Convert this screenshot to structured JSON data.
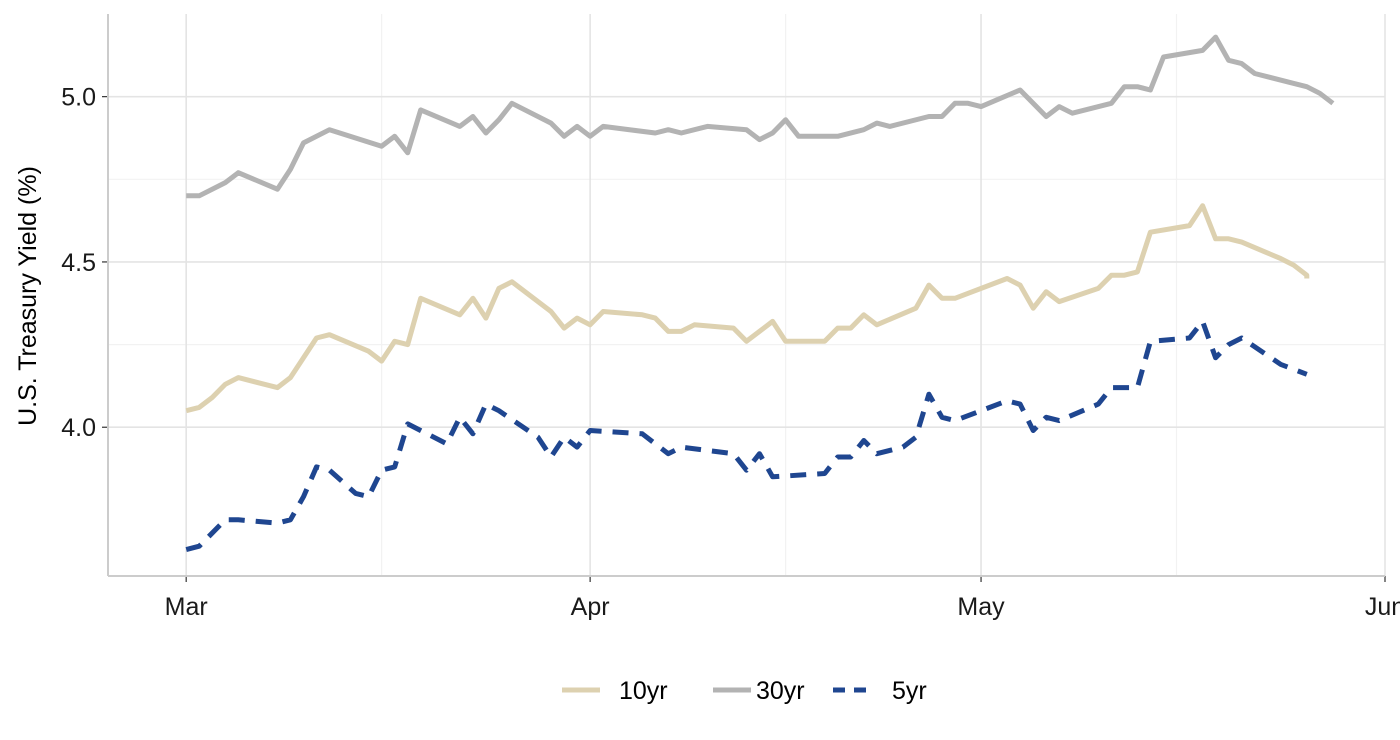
{
  "chart_data": {
    "type": "line",
    "title": "",
    "xlabel": "",
    "ylabel": "U.S. Treasury Yield (%)",
    "x_ticks": [
      {
        "date": "2024-03-01",
        "label": "Mar"
      },
      {
        "date": "2024-04-01",
        "label": "Apr"
      },
      {
        "date": "2024-05-01",
        "label": "May"
      },
      {
        "date": "2024-06-01",
        "label": "Jun"
      }
    ],
    "y_ticks": [
      {
        "value": 4.0,
        "label": "4.0"
      },
      {
        "value": 4.5,
        "label": "4.5"
      },
      {
        "value": 5.0,
        "label": "5.0"
      }
    ],
    "xlim": [
      "2024-02-24",
      "2024-06-01"
    ],
    "ylim": [
      3.55,
      5.25
    ],
    "grid": true,
    "legend_position": "bottom",
    "series": [
      {
        "name": "10yr",
        "color": "#DDD1B0",
        "dash": "solid",
        "points": [
          [
            "2024-03-01",
            4.05
          ],
          [
            "2024-03-02",
            4.06
          ],
          [
            "2024-03-03",
            4.09
          ],
          [
            "2024-03-04",
            4.13
          ],
          [
            "2024-03-05",
            4.15
          ],
          [
            "2024-03-08",
            4.12
          ],
          [
            "2024-03-09",
            4.15
          ],
          [
            "2024-03-11",
            4.27
          ],
          [
            "2024-03-12",
            4.28
          ],
          [
            "2024-03-15",
            4.23
          ],
          [
            "2024-03-16",
            4.2
          ],
          [
            "2024-03-17",
            4.26
          ],
          [
            "2024-03-18",
            4.25
          ],
          [
            "2024-03-19",
            4.39
          ],
          [
            "2024-03-22",
            4.34
          ],
          [
            "2024-03-23",
            4.39
          ],
          [
            "2024-03-24",
            4.33
          ],
          [
            "2024-03-25",
            4.42
          ],
          [
            "2024-03-26",
            4.44
          ],
          [
            "2024-03-29",
            4.35
          ],
          [
            "2024-03-30",
            4.3
          ],
          [
            "2024-03-31",
            4.33
          ],
          [
            "2024-04-01",
            4.31
          ],
          [
            "2024-04-02",
            4.35
          ],
          [
            "2024-04-05",
            4.34
          ],
          [
            "2024-04-06",
            4.33
          ],
          [
            "2024-04-07",
            4.29
          ],
          [
            "2024-04-08",
            4.29
          ],
          [
            "2024-04-09",
            4.31
          ],
          [
            "2024-04-12",
            4.3
          ],
          [
            "2024-04-13",
            4.26
          ],
          [
            "2024-04-14",
            4.29
          ],
          [
            "2024-04-15",
            4.32
          ],
          [
            "2024-04-16",
            4.26
          ],
          [
            "2024-04-19",
            4.26
          ],
          [
            "2024-04-20",
            4.3
          ],
          [
            "2024-04-21",
            4.3
          ],
          [
            "2024-04-22",
            4.34
          ],
          [
            "2024-04-23",
            4.31
          ],
          [
            "2024-04-26",
            4.36
          ],
          [
            "2024-04-27",
            4.43
          ],
          [
            "2024-04-28",
            4.39
          ],
          [
            "2024-04-29",
            4.39
          ],
          [
            "2024-05-03",
            4.45
          ],
          [
            "2024-05-04",
            4.43
          ],
          [
            "2024-05-05",
            4.36
          ],
          [
            "2024-05-06",
            4.41
          ],
          [
            "2024-05-07",
            4.38
          ],
          [
            "2024-05-10",
            4.42
          ],
          [
            "2024-05-11",
            4.46
          ],
          [
            "2024-05-12",
            4.46
          ],
          [
            "2024-05-13",
            4.47
          ],
          [
            "2024-05-14",
            4.59
          ],
          [
            "2024-05-17",
            4.61
          ],
          [
            "2024-05-18",
            4.67
          ],
          [
            "2024-05-19",
            4.57
          ],
          [
            "2024-05-20",
            4.57
          ],
          [
            "2024-05-21",
            4.56
          ],
          [
            "2024-05-24",
            4.51
          ],
          [
            "2024-05-25",
            4.49
          ],
          [
            "2024-05-26",
            4.46
          ],
          [
            "2024-05-26",
            4.45
          ]
        ]
      },
      {
        "name": "30yr",
        "color": "#B3B3B3",
        "dash": "solid",
        "points": [
          [
            "2024-03-01",
            4.7
          ],
          [
            "2024-03-02",
            4.7
          ],
          [
            "2024-03-04",
            4.74
          ],
          [
            "2024-03-05",
            4.77
          ],
          [
            "2024-03-08",
            4.72
          ],
          [
            "2024-03-09",
            4.78
          ],
          [
            "2024-03-10",
            4.86
          ],
          [
            "2024-03-12",
            4.9
          ],
          [
            "2024-03-16",
            4.85
          ],
          [
            "2024-03-17",
            4.88
          ],
          [
            "2024-03-18",
            4.83
          ],
          [
            "2024-03-19",
            4.96
          ],
          [
            "2024-03-22",
            4.91
          ],
          [
            "2024-03-23",
            4.94
          ],
          [
            "2024-03-24",
            4.89
          ],
          [
            "2024-03-25",
            4.93
          ],
          [
            "2024-03-26",
            4.98
          ],
          [
            "2024-03-29",
            4.92
          ],
          [
            "2024-03-30",
            4.88
          ],
          [
            "2024-03-31",
            4.91
          ],
          [
            "2024-04-01",
            4.88
          ],
          [
            "2024-04-02",
            4.91
          ],
          [
            "2024-04-06",
            4.89
          ],
          [
            "2024-04-07",
            4.9
          ],
          [
            "2024-04-08",
            4.89
          ],
          [
            "2024-04-10",
            4.91
          ],
          [
            "2024-04-13",
            4.9
          ],
          [
            "2024-04-14",
            4.87
          ],
          [
            "2024-04-15",
            4.89
          ],
          [
            "2024-04-16",
            4.93
          ],
          [
            "2024-04-17",
            4.88
          ],
          [
            "2024-04-20",
            4.88
          ],
          [
            "2024-04-22",
            4.9
          ],
          [
            "2024-04-23",
            4.92
          ],
          [
            "2024-04-24",
            4.91
          ],
          [
            "2024-04-27",
            4.94
          ],
          [
            "2024-04-28",
            4.94
          ],
          [
            "2024-04-29",
            4.98
          ],
          [
            "2024-04-30",
            4.98
          ],
          [
            "2024-05-01",
            4.97
          ],
          [
            "2024-05-04",
            5.02
          ],
          [
            "2024-05-06",
            4.94
          ],
          [
            "2024-05-07",
            4.97
          ],
          [
            "2024-05-08",
            4.95
          ],
          [
            "2024-05-11",
            4.98
          ],
          [
            "2024-05-12",
            5.03
          ],
          [
            "2024-05-13",
            5.03
          ],
          [
            "2024-05-14",
            5.02
          ],
          [
            "2024-05-15",
            5.12
          ],
          [
            "2024-05-18",
            5.14
          ],
          [
            "2024-05-19",
            5.18
          ],
          [
            "2024-05-20",
            5.11
          ],
          [
            "2024-05-21",
            5.1
          ],
          [
            "2024-05-22",
            5.07
          ],
          [
            "2024-05-25",
            5.04
          ],
          [
            "2024-05-26",
            5.03
          ],
          [
            "2024-05-27",
            5.01
          ],
          [
            "2024-05-28",
            4.98
          ]
        ]
      },
      {
        "name": "5yr",
        "color": "#1F4690",
        "dash": "dashed",
        "points": [
          [
            "2024-03-01",
            3.63
          ],
          [
            "2024-03-02",
            3.64
          ],
          [
            "2024-03-04",
            3.72
          ],
          [
            "2024-03-05",
            3.72
          ],
          [
            "2024-03-08",
            3.71
          ],
          [
            "2024-03-09",
            3.72
          ],
          [
            "2024-03-10",
            3.79
          ],
          [
            "2024-03-11",
            3.88
          ],
          [
            "2024-03-12",
            3.87
          ],
          [
            "2024-03-14",
            3.8
          ],
          [
            "2024-03-15",
            3.79
          ],
          [
            "2024-03-16",
            3.87
          ],
          [
            "2024-03-17",
            3.88
          ],
          [
            "2024-03-18",
            4.01
          ],
          [
            "2024-03-21",
            3.95
          ],
          [
            "2024-03-22",
            4.03
          ],
          [
            "2024-03-23",
            3.98
          ],
          [
            "2024-03-24",
            4.07
          ],
          [
            "2024-03-25",
            4.05
          ],
          [
            "2024-03-28",
            3.97
          ],
          [
            "2024-03-29",
            3.91
          ],
          [
            "2024-03-30",
            3.97
          ],
          [
            "2024-03-31",
            3.94
          ],
          [
            "2024-04-01",
            3.99
          ],
          [
            "2024-04-05",
            3.98
          ],
          [
            "2024-04-06",
            3.95
          ],
          [
            "2024-04-07",
            3.92
          ],
          [
            "2024-04-08",
            3.94
          ],
          [
            "2024-04-10",
            3.93
          ],
          [
            "2024-04-12",
            3.92
          ],
          [
            "2024-04-13",
            3.87
          ],
          [
            "2024-04-14",
            3.92
          ],
          [
            "2024-04-15",
            3.85
          ],
          [
            "2024-04-19",
            3.86
          ],
          [
            "2024-04-20",
            3.91
          ],
          [
            "2024-04-21",
            3.91
          ],
          [
            "2024-04-22",
            3.96
          ],
          [
            "2024-04-23",
            3.92
          ],
          [
            "2024-04-25",
            3.94
          ],
          [
            "2024-04-26",
            3.97
          ],
          [
            "2024-04-27",
            4.1
          ],
          [
            "2024-04-28",
            4.03
          ],
          [
            "2024-04-29",
            4.02
          ],
          [
            "2024-05-03",
            4.08
          ],
          [
            "2024-05-04",
            4.07
          ],
          [
            "2024-05-05",
            3.99
          ],
          [
            "2024-05-06",
            4.03
          ],
          [
            "2024-05-07",
            4.02
          ],
          [
            "2024-05-10",
            4.07
          ],
          [
            "2024-05-11",
            4.12
          ],
          [
            "2024-05-12",
            4.12
          ],
          [
            "2024-05-13",
            4.12
          ],
          [
            "2024-05-14",
            4.26
          ],
          [
            "2024-05-17",
            4.27
          ],
          [
            "2024-05-18",
            4.32
          ],
          [
            "2024-05-19",
            4.21
          ],
          [
            "2024-05-20",
            4.25
          ],
          [
            "2024-05-21",
            4.27
          ],
          [
            "2024-05-24",
            4.19
          ],
          [
            "2024-05-26",
            4.16
          ]
        ]
      }
    ]
  }
}
